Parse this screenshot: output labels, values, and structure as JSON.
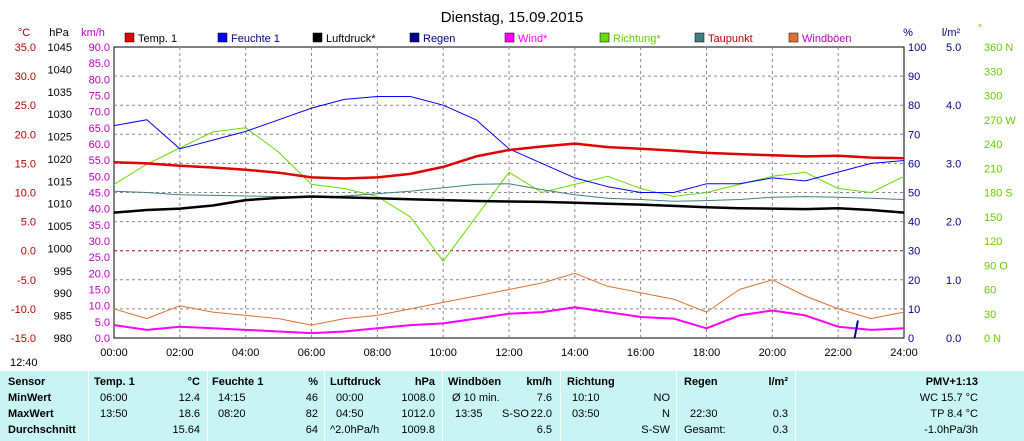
{
  "title": "Dienstag, 15.09.2015",
  "timestamp": "12:40",
  "colors": {
    "temp": "#e00000",
    "feuchte": "#0000ff",
    "luftdruck": "#000000",
    "regen": "#000090",
    "wind": "#ff00ff",
    "richtung": "#66dd00",
    "taupunkt": "#408080",
    "windboeen": "#e07030",
    "left_axis": "#c00000",
    "kmh_axis": "#c000c0"
  },
  "legend": [
    {
      "label": "Temp. 1",
      "color": "#e00000",
      "text_color": "#000000"
    },
    {
      "label": "Feuchte 1",
      "color": "#0000ff",
      "text_color": "#000090"
    },
    {
      "label": "Luftdruck*",
      "color": "#000000",
      "text_color": "#000000"
    },
    {
      "label": "Regen",
      "color": "#000090",
      "text_color": "#000090"
    },
    {
      "label": "Wind*",
      "color": "#ff00ff",
      "text_color": "#ff00ff"
    },
    {
      "label": "Richtung*",
      "color": "#66dd00",
      "text_color": "#66cc00"
    },
    {
      "label": "Taupunkt",
      "color": "#408080",
      "text_color": "#c00000"
    },
    {
      "label": "Windböen",
      "color": "#e07030",
      "text_color": "#c000c0"
    }
  ],
  "chart_data": {
    "type": "line",
    "title": "Dienstag, 15.09.2015",
    "axes": {
      "temp_unit": "°C",
      "hpa_unit": "hPa",
      "kmh_unit": "km/h",
      "pct_unit": "%",
      "rain_unit": "l/m²",
      "deg_unit": "°",
      "temp_ticks": [
        "35.0",
        "30.0",
        "25.0",
        "20.0",
        "15.0",
        "10.0",
        "5.0",
        "0.0",
        "-5.0",
        "-10.0",
        "-15.0"
      ],
      "hpa_ticks": [
        "1045",
        "1040",
        "1035",
        "1030",
        "1025",
        "1020",
        "1015",
        "1010",
        "1005",
        "1000",
        "995",
        "990",
        "985",
        "980"
      ],
      "kmh_ticks": [
        "90.0",
        "85.0",
        "80.0",
        "75.0",
        "70.0",
        "65.0",
        "60.0",
        "55.0",
        "50.0",
        "45.0",
        "40.0",
        "35.0",
        "30.0",
        "25.0",
        "20.0",
        "15.0",
        "10.0",
        "5.0",
        "0.0"
      ],
      "pct_ticks": [
        "100",
        "90",
        "80",
        "70",
        "60",
        "50",
        "40",
        "30",
        "20",
        "10",
        "0"
      ],
      "rain_ticks": [
        "5.0",
        "4.0",
        "3.0",
        "2.0",
        "1.0",
        "0.0"
      ],
      "deg_ticks": [
        "360 N",
        "330",
        "300",
        "270 W",
        "240",
        "210",
        "180 S",
        "150",
        "120",
        "90 O",
        "60",
        "30",
        "0 N"
      ],
      "x_ticks": [
        "00:00",
        "02:00",
        "04:00",
        "06:00",
        "08:00",
        "10:00",
        "12:00",
        "14:00",
        "16:00",
        "18:00",
        "20:00",
        "22:00",
        "24:00"
      ],
      "temp_range": [
        -15,
        35
      ],
      "hpa_range": [
        980,
        1045
      ],
      "kmh_range": [
        0,
        90
      ],
      "pct_range": [
        0,
        100
      ],
      "rain_range": [
        0,
        5
      ],
      "deg_range": [
        0,
        360
      ],
      "x_range": [
        0,
        24
      ]
    },
    "series": [
      {
        "name": "Temp. 1",
        "color": "#e00000",
        "x": [
          0,
          1,
          2,
          3,
          4,
          5,
          6,
          7,
          8,
          9,
          10,
          11,
          12,
          13,
          14,
          15,
          16,
          17,
          18,
          19,
          20,
          21,
          22,
          23,
          24
        ],
        "y": [
          15.2,
          15.0,
          14.6,
          14.3,
          13.9,
          13.4,
          12.6,
          12.4,
          12.6,
          13.2,
          14.4,
          16.2,
          17.3,
          17.9,
          18.4,
          17.8,
          17.5,
          17.2,
          16.8,
          16.6,
          16.4,
          16.2,
          16.3,
          16.0,
          15.9
        ]
      },
      {
        "name": "Feuchte 1",
        "color": "#0000ff",
        "x": [
          0,
          1,
          2,
          3,
          4,
          5,
          6,
          7,
          8,
          9,
          10,
          11,
          12,
          13,
          14,
          15,
          16,
          17,
          18,
          19,
          20,
          21,
          22,
          23,
          24
        ],
        "y": [
          73,
          75,
          65,
          68,
          71,
          75,
          79,
          82,
          83,
          83,
          80,
          75,
          65,
          60,
          55,
          52,
          50,
          50,
          53,
          53,
          55,
          54,
          57,
          60,
          61
        ]
      },
      {
        "name": "Luftdruck*",
        "color": "#000000",
        "x": [
          0,
          1,
          2,
          3,
          4,
          5,
          6,
          7,
          8,
          9,
          10,
          11,
          12,
          13,
          14,
          15,
          16,
          17,
          18,
          19,
          20,
          21,
          22,
          23,
          24
        ],
        "y": [
          1008.0,
          1008.6,
          1008.9,
          1009.6,
          1010.8,
          1011.3,
          1011.6,
          1011.4,
          1011.2,
          1011.0,
          1010.8,
          1010.6,
          1010.5,
          1010.4,
          1010.2,
          1010.0,
          1009.8,
          1009.5,
          1009.2,
          1009.0,
          1008.9,
          1008.8,
          1009.0,
          1008.6,
          1008.0
        ]
      },
      {
        "name": "Regen",
        "color": "#000090",
        "x": [
          22.5,
          22.6
        ],
        "y": [
          0,
          0.3
        ]
      },
      {
        "name": "Wind*",
        "color": "#ff00ff",
        "x": [
          0,
          1,
          2,
          3,
          4,
          5,
          6,
          7,
          8,
          9,
          10,
          11,
          12,
          13,
          14,
          15,
          16,
          17,
          18,
          19,
          20,
          21,
          22,
          23,
          24
        ],
        "y": [
          4.0,
          2.5,
          3.5,
          3.0,
          2.5,
          2.0,
          1.5,
          2.0,
          3.0,
          4.0,
          4.5,
          6.0,
          7.5,
          8.0,
          9.5,
          8.0,
          6.5,
          6.0,
          3.0,
          7.0,
          8.5,
          7.0,
          3.5,
          2.5,
          3.0
        ]
      },
      {
        "name": "Richtung*",
        "color": "#66dd00",
        "x": [
          0,
          1,
          2,
          3,
          4,
          5,
          6,
          7,
          8,
          9,
          10,
          11,
          12,
          13,
          14,
          15,
          16,
          17,
          18,
          19,
          20,
          21,
          22,
          23,
          24
        ],
        "y": [
          190,
          215,
          235,
          255,
          260,
          230,
          190,
          185,
          175,
          150,
          95,
          150,
          205,
          180,
          190,
          200,
          185,
          175,
          180,
          190,
          200,
          205,
          185,
          180,
          200
        ]
      },
      {
        "name": "Taupunkt",
        "color": "#408080",
        "x": [
          0,
          1,
          2,
          3,
          4,
          5,
          6,
          7,
          8,
          9,
          10,
          11,
          12,
          13,
          14,
          15,
          16,
          17,
          18,
          19,
          20,
          21,
          22,
          23,
          24
        ],
        "y": [
          10.2,
          10.0,
          9.6,
          9.5,
          9.4,
          9.3,
          9.2,
          9.4,
          9.8,
          10.2,
          10.8,
          11.4,
          11.5,
          10.5,
          9.6,
          9.0,
          8.8,
          8.5,
          8.6,
          8.8,
          9.2,
          9.3,
          9.2,
          9.0,
          8.8
        ]
      },
      {
        "name": "Windböen",
        "color": "#e07030",
        "x": [
          0,
          1,
          2,
          3,
          4,
          5,
          6,
          7,
          8,
          9,
          10,
          11,
          12,
          13,
          14,
          15,
          16,
          17,
          18,
          19,
          20,
          21,
          22,
          23,
          24
        ],
        "y": [
          9,
          6,
          10,
          8,
          7,
          6,
          4,
          6,
          7,
          9,
          11,
          13,
          15,
          17,
          20,
          16,
          14,
          12,
          8,
          15,
          18,
          13,
          9,
          6,
          8
        ]
      }
    ],
    "grid": true
  },
  "table": {
    "row_labels": [
      "Sensor",
      "MinWert",
      "MaxWert",
      "Durchschnitt"
    ],
    "temp": {
      "header": "Temp. 1",
      "unit": "°C",
      "min_time": "06:00",
      "min": "12.4",
      "max_time": "13:50",
      "max": "18.6",
      "avg": "15.64"
    },
    "feuchte": {
      "header": "Feuchte 1",
      "unit": "%",
      "min_time": "14:15",
      "min": "46",
      "max_time": "08:20",
      "max": "82",
      "avg": "64"
    },
    "luftdruck": {
      "header": "Luftdruck",
      "unit": "hPa",
      "min_time": "00:00",
      "min": "1008.0",
      "max_time": "04:50",
      "max": "1012.0",
      "trend": "^2.0hPa/h",
      "avg": "1009.8"
    },
    "windboeen": {
      "header": "Windböen",
      "unit": "km/h",
      "min_label": "Ø 10 min.",
      "min": "7.6",
      "max_time": "13:35",
      "max_dir": "S-SO",
      "max": "22.0",
      "avg": "6.5"
    },
    "richtung": {
      "header": "Richtung",
      "min_time": "10:10",
      "min": "NO",
      "max_time": "03:50",
      "max": "N",
      "avg": "S-SW"
    },
    "regen": {
      "header": "Regen",
      "unit": "l/m²",
      "max_time": "22:30",
      "max": "0.3",
      "total_label": "Gesamt:",
      "total": "0.3"
    },
    "pmv": {
      "header": "PMV+1:13",
      "wc": "WC 15.7 °C",
      "tp": "TP 8.4 °C",
      "trend": "-1.0hPa/3h"
    }
  }
}
